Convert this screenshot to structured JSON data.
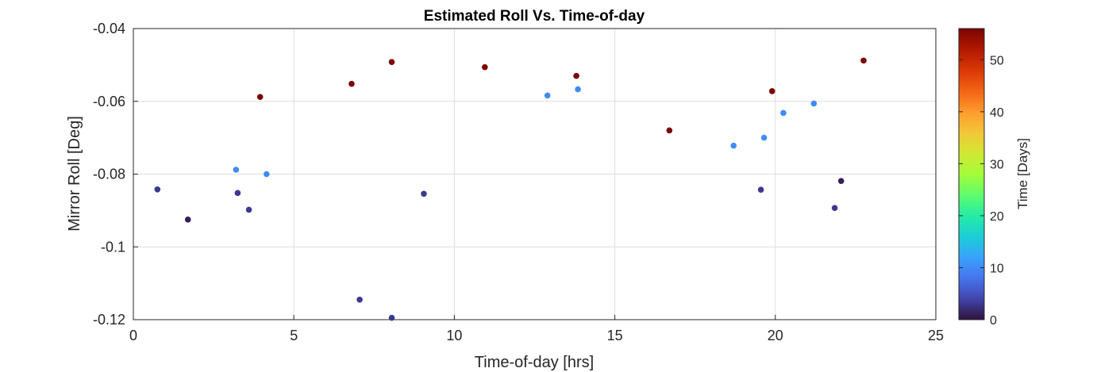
{
  "chart_data": {
    "type": "scatter",
    "title": "Estimated Roll Vs. Time-of-day",
    "xlabel": "Time-of-day [hrs]",
    "ylabel": "Mirror Roll [Deg]",
    "xlim": [
      0,
      25
    ],
    "ylim": [
      -0.12,
      -0.04
    ],
    "xticks": [
      0,
      5,
      10,
      15,
      20,
      25
    ],
    "xtick_labels": [
      "0",
      "5",
      "10",
      "15",
      "20",
      "25"
    ],
    "yticks": [
      -0.04,
      -0.06,
      -0.08,
      -0.1,
      -0.12
    ],
    "ytick_labels": [
      "-0.04",
      "-0.06",
      "-0.08",
      "-0.1",
      "-0.12"
    ],
    "grid": true,
    "colorbar": {
      "label": "Time [Days]",
      "range": [
        0,
        56
      ],
      "ticks": [
        0,
        10,
        20,
        30,
        40,
        50
      ],
      "tick_labels": [
        "0",
        "10",
        "20",
        "30",
        "40",
        "50"
      ],
      "colormap": "turbo"
    },
    "points": [
      {
        "x": 0.75,
        "y": -0.0842,
        "c": 3
      },
      {
        "x": 1.7,
        "y": -0.0925,
        "c": 1
      },
      {
        "x": 3.2,
        "y": -0.0788,
        "c": 10
      },
      {
        "x": 3.25,
        "y": -0.0852,
        "c": 3
      },
      {
        "x": 3.6,
        "y": -0.0898,
        "c": 3
      },
      {
        "x": 3.95,
        "y": -0.0588,
        "c": 56
      },
      {
        "x": 4.15,
        "y": -0.08,
        "c": 10
      },
      {
        "x": 6.8,
        "y": -0.0552,
        "c": 56
      },
      {
        "x": 7.05,
        "y": -0.1145,
        "c": 3
      },
      {
        "x": 8.05,
        "y": -0.0492,
        "c": 56
      },
      {
        "x": 8.05,
        "y": -0.1195,
        "c": 3
      },
      {
        "x": 9.05,
        "y": -0.0854,
        "c": 3
      },
      {
        "x": 10.95,
        "y": -0.0506,
        "c": 56
      },
      {
        "x": 12.9,
        "y": -0.0584,
        "c": 10
      },
      {
        "x": 13.8,
        "y": -0.053,
        "c": 56
      },
      {
        "x": 13.85,
        "y": -0.0567,
        "c": 10
      },
      {
        "x": 16.7,
        "y": -0.068,
        "c": 56
      },
      {
        "x": 18.7,
        "y": -0.0722,
        "c": 10
      },
      {
        "x": 19.55,
        "y": -0.0843,
        "c": 3
      },
      {
        "x": 19.65,
        "y": -0.07,
        "c": 10
      },
      {
        "x": 19.9,
        "y": -0.0572,
        "c": 56
      },
      {
        "x": 20.25,
        "y": -0.0632,
        "c": 10
      },
      {
        "x": 21.2,
        "y": -0.0606,
        "c": 10
      },
      {
        "x": 21.85,
        "y": -0.0893,
        "c": 3
      },
      {
        "x": 22.05,
        "y": -0.0819,
        "c": 1
      },
      {
        "x": 22.75,
        "y": -0.0488,
        "c": 56
      }
    ]
  }
}
